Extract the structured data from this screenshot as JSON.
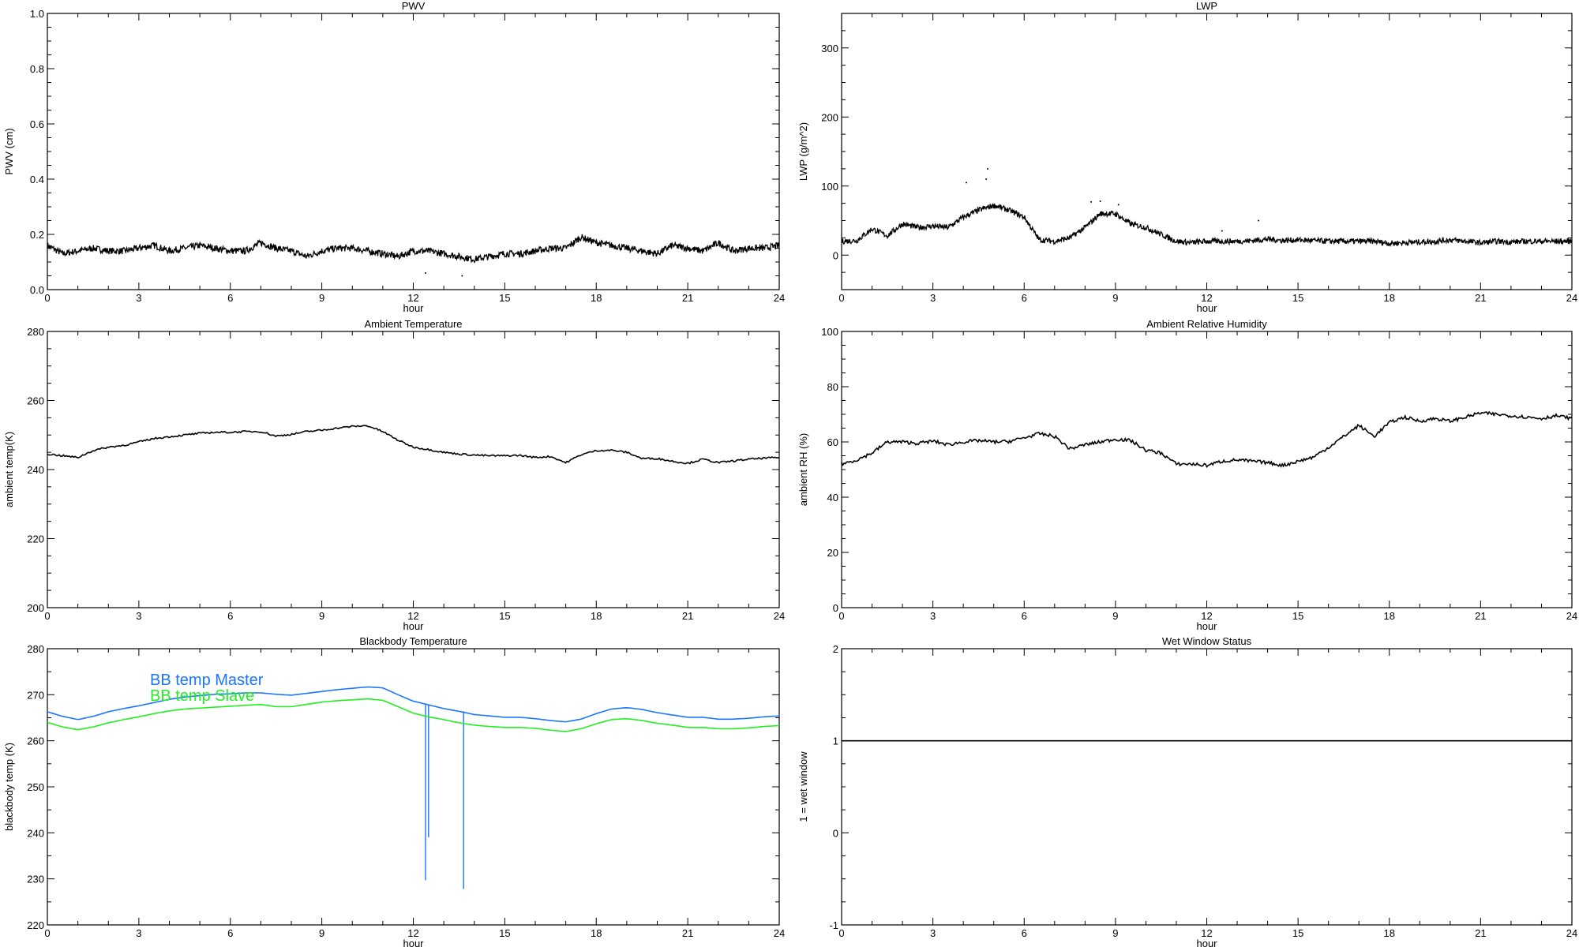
{
  "chart_data": [
    {
      "type": "line",
      "title": "PWV",
      "xlabel": "hour",
      "ylabel": "PWV (cm)",
      "xlim": [
        0,
        24
      ],
      "ylim": [
        0,
        1.0
      ],
      "xticks": [
        "0",
        "3",
        "6",
        "9",
        "12",
        "15",
        "18",
        "21",
        "24"
      ],
      "yticks": [
        "0.0",
        "0.2",
        "0.4",
        "0.6",
        "0.8",
        "1.0"
      ],
      "x_step": 0.5,
      "series": [
        {
          "name": "PWV",
          "color": "#000000",
          "values": [
            0.16,
            0.13,
            0.14,
            0.15,
            0.14,
            0.14,
            0.15,
            0.16,
            0.14,
            0.15,
            0.16,
            0.15,
            0.14,
            0.14,
            0.17,
            0.15,
            0.14,
            0.12,
            0.14,
            0.15,
            0.15,
            0.14,
            0.13,
            0.12,
            0.14,
            0.14,
            0.13,
            0.12,
            0.11,
            0.12,
            0.13,
            0.13,
            0.14,
            0.15,
            0.15,
            0.19,
            0.17,
            0.16,
            0.15,
            0.14,
            0.13,
            0.16,
            0.15,
            0.14,
            0.17,
            0.14,
            0.15,
            0.15,
            0.16
          ]
        }
      ],
      "outliers": [
        [
          12.4,
          0.06
        ],
        [
          13.6,
          0.05
        ]
      ]
    },
    {
      "type": "line",
      "title": "LWP",
      "xlabel": "hour",
      "ylabel": "LWP (g/m^2)",
      "xlim": [
        0,
        24
      ],
      "ylim": [
        -50,
        350
      ],
      "xticks": [
        "0",
        "3",
        "6",
        "9",
        "12",
        "15",
        "18",
        "21",
        "24"
      ],
      "yticks": [
        "0",
        "100",
        "200",
        "300"
      ],
      "ytick_values": [
        0,
        100,
        200,
        300
      ],
      "x_step": 0.5,
      "series": [
        {
          "name": "LWP",
          "color": "#000000",
          "values": [
            20,
            21,
            38,
            28,
            45,
            40,
            42,
            40,
            55,
            65,
            72,
            65,
            55,
            22,
            20,
            25,
            40,
            60,
            60,
            45,
            40,
            30,
            20,
            18,
            20,
            20,
            20,
            21,
            23,
            21,
            22,
            21,
            20,
            20,
            20,
            20,
            17,
            18,
            19,
            20,
            22,
            20,
            18,
            20,
            19,
            20,
            20,
            20,
            20
          ]
        }
      ],
      "outliers": [
        [
          4.1,
          105
        ],
        [
          4.8,
          125
        ],
        [
          4.75,
          110
        ],
        [
          8.2,
          77
        ],
        [
          8.5,
          78
        ],
        [
          9.1,
          73
        ],
        [
          12.5,
          35
        ],
        [
          13.7,
          50
        ]
      ]
    },
    {
      "type": "line",
      "title": "Ambient Temperature",
      "xlabel": "hour",
      "ylabel": "ambient temp(K)",
      "xlim": [
        0,
        24
      ],
      "ylim": [
        200,
        280
      ],
      "xticks": [
        "0",
        "3",
        "6",
        "9",
        "12",
        "15",
        "18",
        "21",
        "24"
      ],
      "yticks": [
        "200",
        "220",
        "240",
        "260",
        "280"
      ],
      "x_step": 0.5,
      "series": [
        {
          "name": "ambient temp",
          "color": "#000000",
          "values": [
            244.5,
            244,
            243.5,
            245.5,
            246.5,
            247,
            248,
            249,
            249.5,
            250,
            250.5,
            250.8,
            250.8,
            251,
            251,
            249.7,
            250.2,
            251,
            251.4,
            252,
            252.5,
            252.7,
            251,
            248.5,
            246.5,
            245.8,
            245,
            244.5,
            244.2,
            244,
            244,
            244.1,
            243.5,
            243.8,
            242,
            244.3,
            245.5,
            245.6,
            245,
            243.2,
            243.2,
            242.4,
            241.8,
            243,
            242,
            242.5,
            243,
            243.3,
            243.5
          ]
        }
      ]
    },
    {
      "type": "line",
      "title": "Ambient Relative Humidity",
      "xlabel": "hour",
      "ylabel": "ambient RH (%)",
      "xlim": [
        0,
        24
      ],
      "ylim": [
        0,
        100
      ],
      "xticks": [
        "0",
        "3",
        "6",
        "9",
        "12",
        "15",
        "18",
        "21",
        "24"
      ],
      "yticks": [
        "0",
        "20",
        "40",
        "60",
        "80",
        "100"
      ],
      "x_step": 0.5,
      "series": [
        {
          "name": "ambient RH",
          "color": "#000000",
          "values": [
            52,
            53.5,
            56,
            60,
            60,
            59.5,
            60.3,
            59,
            60,
            60.5,
            60,
            60.2,
            61.5,
            63,
            62,
            57.5,
            59,
            60,
            61,
            60.5,
            57,
            56,
            52,
            52,
            51.5,
            53,
            53.5,
            53,
            52.5,
            51.5,
            53,
            54.5,
            58,
            62,
            66,
            62,
            67,
            69,
            67.5,
            68.5,
            67.5,
            69,
            70.5,
            70,
            69.5,
            69,
            68.5,
            69.5,
            68.5
          ]
        }
      ]
    },
    {
      "type": "line",
      "title": "Blackbody Temperature",
      "xlabel": "hour",
      "ylabel": "blackbody temp (K)",
      "xlim": [
        0,
        24
      ],
      "ylim": [
        220,
        280
      ],
      "xticks": [
        "0",
        "3",
        "6",
        "9",
        "12",
        "15",
        "18",
        "21",
        "24"
      ],
      "yticks": [
        "220",
        "230",
        "240",
        "250",
        "260",
        "270",
        "280"
      ],
      "x_step": 0.5,
      "legend": "top-left",
      "series": [
        {
          "name": "BB temp Master",
          "color": "#1a75ff",
          "values": [
            266.3,
            265.3,
            264.6,
            265.3,
            266.3,
            267,
            267.6,
            268.3,
            269,
            269.5,
            269.8,
            270.1,
            270.2,
            270.4,
            270.4,
            270.1,
            269.9,
            270.3,
            270.7,
            271.1,
            271.4,
            271.7,
            271.5,
            270,
            268.6,
            267.8,
            267,
            266.4,
            265.7,
            265.4,
            265.1,
            265.1,
            264.8,
            264.4,
            264.1,
            264.7,
            265.9,
            266.9,
            267.2,
            266.8,
            266.1,
            265.6,
            265.1,
            265.1,
            264.7,
            264.7,
            264.9,
            265.2,
            265.4
          ],
          "spikes": [
            [
              12.4,
              229.7
            ],
            [
              12.5,
              239.0
            ],
            [
              13.65,
              227.8
            ]
          ]
        },
        {
          "name": "BB temp Slave",
          "color": "#22ee22",
          "values": [
            264.0,
            263.0,
            262.4,
            263.0,
            263.9,
            264.6,
            265.2,
            265.9,
            266.5,
            266.9,
            267.1,
            267.3,
            267.5,
            267.7,
            267.9,
            267.4,
            267.4,
            267.9,
            268.4,
            268.7,
            268.9,
            269.1,
            268.8,
            267.4,
            266.0,
            265.2,
            264.6,
            263.9,
            263.4,
            263.1,
            262.9,
            262.9,
            262.7,
            262.3,
            262.0,
            262.6,
            263.7,
            264.6,
            264.8,
            264.4,
            263.8,
            263.4,
            262.9,
            262.9,
            262.6,
            262.6,
            262.8,
            263.1,
            263.3
          ]
        }
      ]
    },
    {
      "type": "line",
      "title": "Wet Window Status",
      "xlabel": "hour",
      "ylabel": "1 = wet window",
      "xlim": [
        0,
        24
      ],
      "ylim": [
        -1,
        2
      ],
      "xticks": [
        "0",
        "3",
        "6",
        "9",
        "12",
        "15",
        "18",
        "21",
        "24"
      ],
      "yticks": [
        "-1",
        "0",
        "1",
        "2"
      ],
      "x_step": 24,
      "series": [
        {
          "name": "wet window",
          "color": "#000000",
          "values": [
            1,
            1
          ]
        }
      ]
    }
  ]
}
